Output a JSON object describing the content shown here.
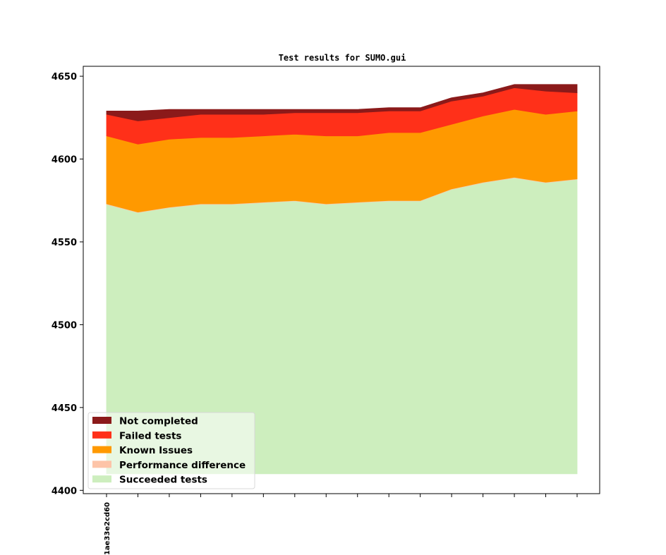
{
  "chart_data": {
    "type": "area",
    "stacked": true,
    "title": "Test results for SUMO.gui",
    "xlabel": "",
    "ylabel": "",
    "ylim": [
      4398,
      4656
    ],
    "baseline": 4410,
    "yticks": [
      4400,
      4450,
      4500,
      4550,
      4600,
      4650
    ],
    "x_count": 16,
    "xtick_labels": [
      "-1ae33e2cd60",
      "",
      "",
      "",
      "",
      "",
      "",
      "",
      "",
      "",
      "",
      "",
      "",
      "",
      "",
      ""
    ],
    "grid": false,
    "legend_position": "bottom-left",
    "series": [
      {
        "name": "Succeeded tests",
        "color": "#cdeebe",
        "values": [
          163,
          158,
          161,
          163,
          163,
          164,
          165,
          163,
          164,
          165,
          165,
          172,
          176,
          179,
          176,
          178
        ]
      },
      {
        "name": "Performance difference",
        "color": "#fdc4a8",
        "values": [
          0,
          0,
          0,
          0,
          0,
          0,
          0,
          0,
          0,
          0,
          0,
          0,
          0,
          0,
          0,
          0
        ]
      },
      {
        "name": "Known Issues",
        "color": "#ff9900",
        "values": [
          41,
          41,
          41,
          40,
          40,
          40,
          40,
          41,
          40,
          41,
          41,
          39,
          40,
          41,
          41,
          41
        ]
      },
      {
        "name": "Failed tests",
        "color": "#ff3019",
        "values": [
          13,
          14,
          13,
          14,
          14,
          13,
          13,
          14,
          14,
          13,
          13,
          14,
          12,
          13,
          14,
          11
        ]
      },
      {
        "name": "Not completed",
        "color": "#8b1a1a",
        "values": [
          2,
          6,
          5,
          3,
          3,
          3,
          2,
          2,
          2,
          2,
          2,
          2,
          2,
          2,
          4,
          5
        ]
      }
    ],
    "legend_order": [
      "Not completed",
      "Failed tests",
      "Known Issues",
      "Performance difference",
      "Succeeded tests"
    ]
  }
}
